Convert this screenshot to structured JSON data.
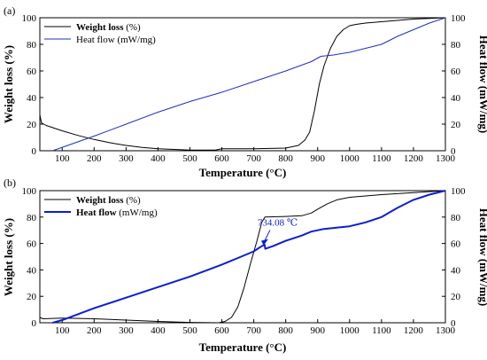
{
  "chart_data": [
    {
      "type": "line",
      "panel_label": "(a)",
      "xlabel": "Temperature (°C)",
      "ylabel_left": "Weight loss (%)",
      "ylabel_right": "Heat flow (mW/mg)",
      "xlim": [
        30,
        1300
      ],
      "ylim_left": [
        0,
        100
      ],
      "ylim_right": [
        0,
        100
      ],
      "x_ticks": [
        "100",
        "200",
        "300",
        "400",
        "500",
        "600",
        "700",
        "800",
        "900",
        "1000",
        "1100",
        "1200",
        "1300"
      ],
      "y_ticks_left": [
        "0",
        "20",
        "40",
        "60",
        "80",
        "100"
      ],
      "y_ticks_right": [
        "0",
        "20",
        "40",
        "60",
        "80",
        "100"
      ],
      "legend": [
        {
          "name_bold": "Weight loss",
          "unit": " (%)",
          "color": "#000000"
        },
        {
          "name_bold": "Heat flow",
          "unit": " (mW/mg)",
          "color": "#1f2fbf"
        }
      ],
      "series": [
        {
          "name": "Weight loss (%)",
          "axis": "left",
          "color": "#000000",
          "points": [
            [
              30,
              27
            ],
            [
              35,
              21
            ],
            [
              50,
              19
            ],
            [
              100,
              15
            ],
            [
              150,
              11.5
            ],
            [
              200,
              8.5
            ],
            [
              250,
              6
            ],
            [
              300,
              4
            ],
            [
              350,
              2.5
            ],
            [
              400,
              1.5
            ],
            [
              450,
              1
            ],
            [
              500,
              0.5
            ],
            [
              580,
              0.5
            ],
            [
              600,
              1.5
            ],
            [
              700,
              1.5
            ],
            [
              800,
              2
            ],
            [
              840,
              4
            ],
            [
              860,
              8
            ],
            [
              875,
              14
            ],
            [
              890,
              30
            ],
            [
              905,
              50
            ],
            [
              920,
              64
            ],
            [
              940,
              77
            ],
            [
              960,
              86
            ],
            [
              980,
              91
            ],
            [
              1000,
              94
            ],
            [
              1020,
              95
            ],
            [
              1050,
              96
            ],
            [
              1100,
              97
            ],
            [
              1150,
              98
            ],
            [
              1200,
              99
            ],
            [
              1250,
              99.5
            ],
            [
              1300,
              100
            ]
          ]
        },
        {
          "name": "Heat flow (mW/mg)",
          "axis": "right",
          "color": "#1f2fbf",
          "points": [
            [
              70,
              0
            ],
            [
              200,
              11
            ],
            [
              300,
              20
            ],
            [
              400,
              29
            ],
            [
              500,
              37
            ],
            [
              600,
              44
            ],
            [
              700,
              52
            ],
            [
              800,
              60
            ],
            [
              880,
              67
            ],
            [
              910,
              71
            ],
            [
              950,
              72
            ],
            [
              1000,
              74
            ],
            [
              1050,
              77
            ],
            [
              1100,
              80
            ],
            [
              1150,
              86
            ],
            [
              1200,
              91
            ],
            [
              1250,
              96
            ],
            [
              1300,
              100
            ]
          ]
        }
      ]
    },
    {
      "type": "line",
      "panel_label": "(b)",
      "xlabel": "Temperature (°C)",
      "ylabel_left": "Weight loss (%)",
      "ylabel_right": "Heat flow (mW/mg)",
      "xlim": [
        30,
        1300
      ],
      "ylim_left": [
        0,
        100
      ],
      "ylim_right": [
        0,
        100
      ],
      "x_ticks": [
        "100",
        "200",
        "300",
        "400",
        "500",
        "600",
        "700",
        "800",
        "900",
        "1000",
        "1100",
        "1200",
        "1300"
      ],
      "y_ticks_left": [
        "0",
        "20",
        "40",
        "60",
        "80",
        "100"
      ],
      "y_ticks_right": [
        "0",
        "20",
        "40",
        "60",
        "80",
        "100"
      ],
      "legend": [
        {
          "name_bold": "Weight loss",
          "unit": " (%)",
          "color": "#000000"
        },
        {
          "name_bold": "Heat flow",
          "unit": " (mW/mg)",
          "color": "#0a1ed2"
        }
      ],
      "annotation": {
        "text": "734.08 ℃",
        "x": 734.08,
        "y": 58,
        "axis": "right",
        "color": "#0a1ed2"
      },
      "series": [
        {
          "name": "Weight loss (%)",
          "axis": "left",
          "color": "#000000",
          "points": [
            [
              30,
              4
            ],
            [
              40,
              3
            ],
            [
              100,
              3.5
            ],
            [
              200,
              3
            ],
            [
              300,
              2
            ],
            [
              400,
              1
            ],
            [
              500,
              0.3
            ],
            [
              590,
              0
            ],
            [
              610,
              1
            ],
            [
              630,
              4
            ],
            [
              650,
              12
            ],
            [
              670,
              27
            ],
            [
              690,
              45
            ],
            [
              710,
              62
            ],
            [
              725,
              76
            ],
            [
              735,
              80
            ],
            [
              800,
              80.5
            ],
            [
              850,
              81
            ],
            [
              880,
              83
            ],
            [
              900,
              86
            ],
            [
              930,
              90
            ],
            [
              960,
              93
            ],
            [
              1000,
              95
            ],
            [
              1050,
              96
            ],
            [
              1100,
              97
            ],
            [
              1200,
              98.5
            ],
            [
              1300,
              100
            ]
          ]
        },
        {
          "name": "Heat flow (mW/mg)",
          "axis": "right",
          "color": "#0a1ed2",
          "points": [
            [
              70,
              0
            ],
            [
              100,
              2
            ],
            [
              200,
              11
            ],
            [
              300,
              19
            ],
            [
              400,
              27
            ],
            [
              500,
              35
            ],
            [
              600,
              44
            ],
            [
              650,
              49
            ],
            [
              700,
              54
            ],
            [
              725,
              58
            ],
            [
              734,
              59
            ],
            [
              736,
              56
            ],
            [
              760,
              58
            ],
            [
              800,
              62
            ],
            [
              850,
              66
            ],
            [
              880,
              69
            ],
            [
              920,
              71
            ],
            [
              960,
              72
            ],
            [
              1000,
              73
            ],
            [
              1050,
              76
            ],
            [
              1100,
              80
            ],
            [
              1150,
              87
            ],
            [
              1200,
              93
            ],
            [
              1250,
              97
            ],
            [
              1300,
              100
            ]
          ]
        }
      ]
    }
  ]
}
